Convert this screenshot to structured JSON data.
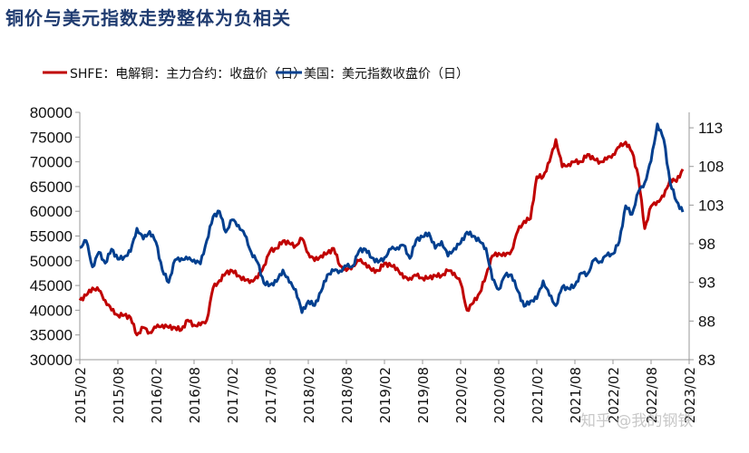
{
  "title": "铜价与美元指数走势整体为负相关",
  "watermark": "知乎 @我的钢铁",
  "chart_data": {
    "type": "line",
    "title": "铜价与美元指数走势整体为负相关",
    "legend_position": "top",
    "grid": false,
    "colors": {
      "copper": "#c00000",
      "dxy": "#003f8f"
    },
    "x_ticks": [
      "2015/02",
      "2015/08",
      "2016/02",
      "2016/08",
      "2017/02",
      "2017/08",
      "2018/02",
      "2018/08",
      "2019/02",
      "2019/08",
      "2020/02",
      "2020/08",
      "2021/02",
      "2021/08",
      "2022/02",
      "2022/08",
      "2023/02"
    ],
    "x_start": "2015/02",
    "x_end": "2023/02",
    "left_axis": {
      "min": 30000,
      "max": 80000,
      "step": 5000,
      "ticks": [
        "30000",
        "35000",
        "40000",
        "45000",
        "50000",
        "55000",
        "60000",
        "65000",
        "70000",
        "75000",
        "80000"
      ]
    },
    "right_axis": {
      "min": 83,
      "max": 115,
      "ticks": [
        "83",
        "88",
        "93",
        "98",
        "103",
        "108",
        "113"
      ]
    },
    "series": [
      {
        "name": "SHFE：电解铜：主力合约：收盘价（日）",
        "axis": "left",
        "start": "2015/02",
        "frequency": "monthly",
        "values": [
          42000,
          43000,
          44500,
          44000,
          42000,
          40000,
          39000,
          39000,
          38500,
          35000,
          36500,
          35500,
          36500,
          37000,
          36500,
          36500,
          36000,
          38000,
          37000,
          37000,
          38000,
          44500,
          46000,
          47500,
          48000,
          47000,
          46000,
          46000,
          46500,
          49000,
          52000,
          52500,
          54000,
          53500,
          53000,
          54500,
          51500,
          50000,
          51000,
          51500,
          52500,
          49000,
          48000,
          49000,
          50000,
          49500,
          48000,
          48000,
          49500,
          49000,
          48500,
          46500,
          46500,
          47000,
          46500,
          46500,
          47000,
          47000,
          48000,
          47500,
          45500,
          40000,
          41500,
          43500,
          47000,
          51000,
          51500,
          51000,
          52000,
          56000,
          58000,
          58500,
          67000,
          67000,
          70000,
          74500,
          69000,
          69500,
          70000,
          70000,
          71500,
          70500,
          70000,
          70500,
          71500,
          73000,
          74000,
          72000,
          67000,
          56500,
          61000,
          62000,
          63000,
          66500,
          66000,
          68500
        ]
      },
      {
        "name": "美国：美元指数收盘价（日）",
        "axis": "right",
        "start": "2015/02",
        "frequency": "monthly",
        "values": [
          97.5,
          98.4,
          95.0,
          96.9,
          95.5,
          97.3,
          96.0,
          96.3,
          97.0,
          100.0,
          98.6,
          99.6,
          98.2,
          94.6,
          93.0,
          95.9,
          96.1,
          96.0,
          95.9,
          95.4,
          98.4,
          101.5,
          102.2,
          99.5,
          101.1,
          100.4,
          99.1,
          96.9,
          95.6,
          92.9,
          92.7,
          93.1,
          94.6,
          93.0,
          92.1,
          89.1,
          90.6,
          90.0,
          91.8,
          94.0,
          94.5,
          94.5,
          95.1,
          95.1,
          97.1,
          97.3,
          96.2,
          95.6,
          96.2,
          97.3,
          97.5,
          97.8,
          96.1,
          98.5,
          98.9,
          99.4,
          97.4,
          98.3,
          96.4,
          97.4,
          98.1,
          99.5,
          99.0,
          98.3,
          97.4,
          93.4,
          92.1,
          93.9,
          94.0,
          91.9,
          89.9,
          90.6,
          90.9,
          93.2,
          91.3,
          90.0,
          92.4,
          92.2,
          92.6,
          94.2,
          94.1,
          95.9,
          95.7,
          96.5,
          96.7,
          98.3,
          102.9,
          101.8,
          104.7,
          105.9,
          108.7,
          113.5,
          111.5,
          105.9,
          103.5,
          102.1
        ]
      }
    ]
  }
}
